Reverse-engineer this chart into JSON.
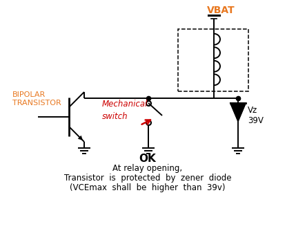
{
  "title": "OK",
  "subtitle_line1": "At relay opening,",
  "subtitle_line2": "Transistor  is  protected  by  zener  diode",
  "subtitle_line3": "(VCEmax  shall  be  higher  than  39v)",
  "vbat_label": "VBAT",
  "bipolar_label1": "BIPOLAR",
  "bipolar_label2": "TRANSISTOR",
  "mechanical_label1": "Mechanical",
  "mechanical_label2": "switch",
  "vz_label": "Vz",
  "v39_label": "39V",
  "line_color": "#000000",
  "orange_color": "#E87820",
  "red_color": "#CC0000",
  "bg_color": "#ffffff",
  "figsize": [
    4.29,
    3.47
  ],
  "dpi": 100
}
